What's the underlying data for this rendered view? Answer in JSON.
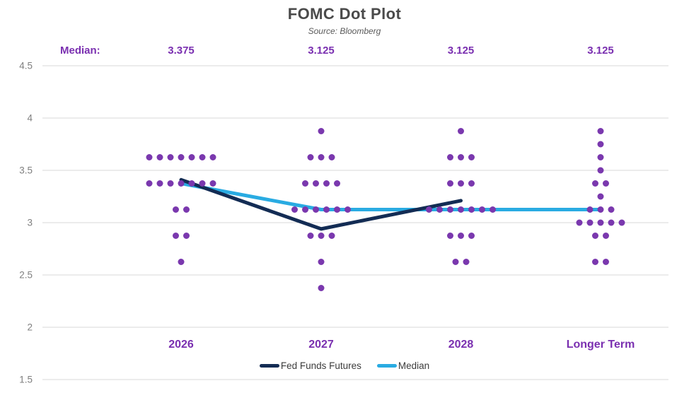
{
  "median_row": {
    "label": "Median:",
    "values": [
      "3.375",
      "3.125",
      "3.125",
      "3.125"
    ]
  },
  "colors": {
    "dot_purple": "#7a38ae",
    "label_purple": "#7a2fb0",
    "navy": "#132c54",
    "cyan": "#29abe2",
    "gridline": "#d9d9d9",
    "axis_text": "#7f7f7f",
    "title_text": "#4a4a4a",
    "subtitle_text": "#5a5a5a",
    "legend_text": "#3c3c3c"
  },
  "chart_data": {
    "type": "scatter",
    "title": "FOMC Dot Plot",
    "subtitle": "Source: Bloomberg",
    "categories": [
      "2026",
      "2027",
      "2028",
      "Longer Term"
    ],
    "ylim": [
      1.5,
      4.5
    ],
    "yticks": [
      "4.5",
      "4",
      "3.5",
      "3",
      "2.5",
      "2",
      "1.5"
    ],
    "grid": true,
    "legend_position": "bottom",
    "medians": [
      3.375,
      3.125,
      3.125,
      3.125
    ],
    "dot_columns": [
      {
        "category": "2026",
        "levels": [
          {
            "value": 3.625,
            "count": 7
          },
          {
            "value": 3.375,
            "count": 7
          },
          {
            "value": 3.125,
            "count": 2
          },
          {
            "value": 2.875,
            "count": 2
          },
          {
            "value": 2.625,
            "count": 1
          }
        ]
      },
      {
        "category": "2027",
        "levels": [
          {
            "value": 3.875,
            "count": 1
          },
          {
            "value": 3.625,
            "count": 3
          },
          {
            "value": 3.375,
            "count": 4
          },
          {
            "value": 3.125,
            "count": 6
          },
          {
            "value": 2.875,
            "count": 3
          },
          {
            "value": 2.625,
            "count": 1
          },
          {
            "value": 2.375,
            "count": 1
          }
        ]
      },
      {
        "category": "2028",
        "levels": [
          {
            "value": 3.875,
            "count": 1
          },
          {
            "value": 3.625,
            "count": 3
          },
          {
            "value": 3.375,
            "count": 3
          },
          {
            "value": 3.125,
            "count": 7
          },
          {
            "value": 2.875,
            "count": 3
          },
          {
            "value": 2.625,
            "count": 2
          }
        ]
      },
      {
        "category": "Longer Term",
        "levels": [
          {
            "value": 3.875,
            "count": 1
          },
          {
            "value": 3.75,
            "count": 1
          },
          {
            "value": 3.625,
            "count": 1
          },
          {
            "value": 3.5,
            "count": 1
          },
          {
            "value": 3.375,
            "count": 2
          },
          {
            "value": 3.25,
            "count": 1
          },
          {
            "value": 3.125,
            "count": 3
          },
          {
            "value": 3.0,
            "count": 5
          },
          {
            "value": 2.875,
            "count": 2
          },
          {
            "value": 2.625,
            "count": 2
          }
        ]
      }
    ],
    "series": [
      {
        "name": "Fed Funds Futures",
        "color_key": "navy",
        "category_indexes": [
          0,
          1,
          2
        ],
        "values": [
          3.41,
          2.94,
          3.21
        ]
      },
      {
        "name": "Median",
        "color_key": "cyan",
        "category_indexes": [
          0,
          1,
          2,
          3
        ],
        "values": [
          3.375,
          3.125,
          3.125,
          3.125
        ]
      }
    ]
  }
}
